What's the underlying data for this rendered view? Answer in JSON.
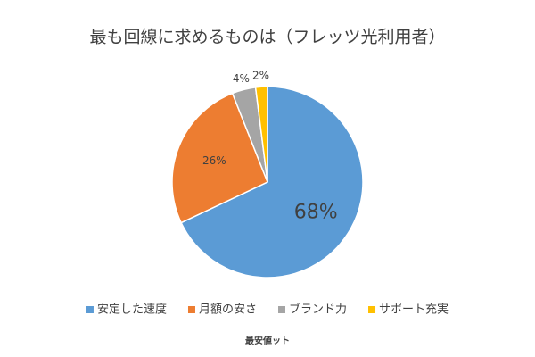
{
  "chart_data": {
    "type": "pie",
    "title": "最も回線に求めるものは（フレッツ光利用者）",
    "categories": [
      "安定した速度",
      "月額の安さ",
      "ブランド力",
      "サポート充実"
    ],
    "values": [
      68,
      26,
      4,
      2
    ],
    "value_labels": [
      "68%",
      "26%",
      "4%",
      "2%"
    ],
    "colors": [
      "#5b9bd5",
      "#ed7d31",
      "#a5a5a5",
      "#ffc000"
    ],
    "legend": "bottom",
    "watermark": "最安値ット"
  }
}
